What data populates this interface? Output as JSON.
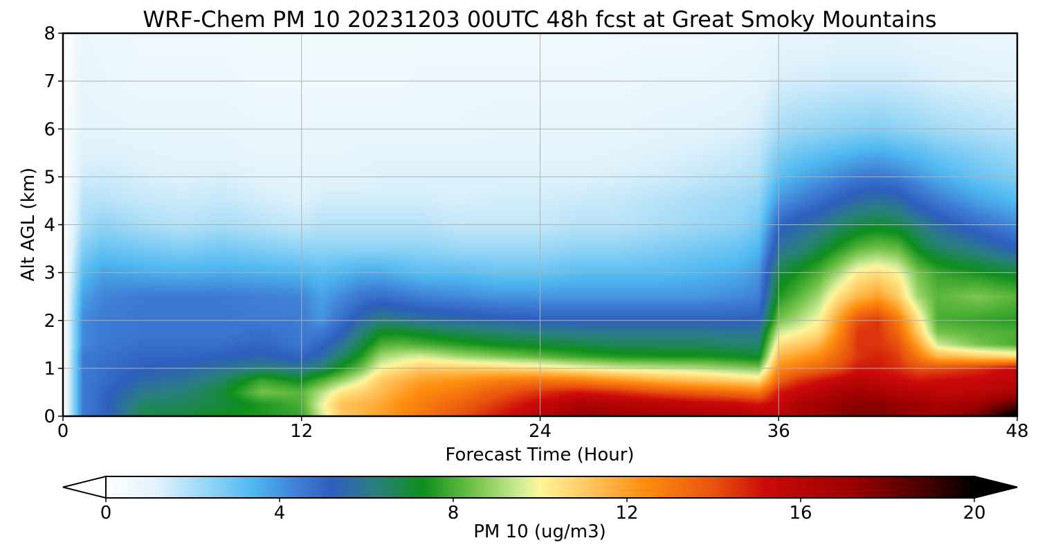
{
  "chart_data": {
    "type": "heatmap",
    "title": "WRF-Chem PM 10  20231203 00UTC 48h fcst at Great Smoky Mountains",
    "xlabel": "Forecast Time (Hour)",
    "ylabel": "Alt AGL (km)",
    "xlim": [
      0,
      48
    ],
    "ylim": [
      0,
      8
    ],
    "xticks": [
      0,
      12,
      24,
      36,
      48
    ],
    "yticks": [
      0,
      1,
      2,
      3,
      4,
      5,
      6,
      7,
      8
    ],
    "grid": true,
    "colorbar": {
      "label": "PM 10  (ug/m3)",
      "range": [
        0,
        20
      ],
      "ticks": [
        0,
        4,
        8,
        12,
        16,
        20
      ],
      "extend": "both",
      "under_color": "#ffffff",
      "over_color": "#000000",
      "stops": [
        [
          0,
          "#ffffff"
        ],
        [
          1.2,
          "#dff2fb"
        ],
        [
          2.4,
          "#8fd3f5"
        ],
        [
          3.4,
          "#4fb8f0"
        ],
        [
          4.4,
          "#3f7fd6"
        ],
        [
          5.2,
          "#2e5fbf"
        ],
        [
          6.2,
          "#2a7f80"
        ],
        [
          7.3,
          "#0e8f1c"
        ],
        [
          8.4,
          "#6cbf45"
        ],
        [
          9.6,
          "#d5ee9a"
        ],
        [
          10,
          "#fff599"
        ],
        [
          11.2,
          "#ffc35a"
        ],
        [
          12.4,
          "#ff8e0f"
        ],
        [
          14,
          "#e8520d"
        ],
        [
          15.2,
          "#cc0a0a"
        ],
        [
          17.2,
          "#9a0000"
        ],
        [
          18.8,
          "#4a0000"
        ],
        [
          20,
          "#000000"
        ]
      ]
    },
    "x": [
      0,
      1,
      2,
      4,
      6,
      8,
      10,
      12,
      13,
      14,
      15,
      16,
      17,
      18,
      20,
      22,
      24,
      26,
      28,
      30,
      32,
      34,
      35,
      36,
      37,
      38,
      39,
      40,
      41,
      42,
      43,
      44,
      46,
      48
    ],
    "y": [
      0,
      0.25,
      0.5,
      0.75,
      1,
      1.25,
      1.5,
      1.75,
      2,
      2.5,
      3,
      3.5,
      4,
      4.5,
      5,
      5.5,
      6,
      7,
      8
    ],
    "series": [
      {
        "values": [
          [
            0,
            4.5,
            5.0,
            6.8,
            7.0,
            7.3,
            7.5,
            7.8,
            9.5,
            11.0,
            11.5,
            12.0,
            12.5,
            13.0,
            14.0,
            15.0,
            16.0,
            17.2,
            17.0,
            16.8,
            16.5,
            16.2,
            16.0,
            16.0,
            16.5,
            17.0,
            17.5,
            17.8,
            17.8,
            17.5,
            17.2,
            17.0,
            18.0,
            20.5
          ],
          [
            0,
            4.5,
            5.0,
            6.5,
            6.6,
            6.9,
            7.5,
            8.0,
            9.8,
            11.2,
            11.5,
            11.8,
            12.4,
            12.8,
            13.6,
            14.5,
            15.5,
            16.5,
            16.2,
            16.0,
            15.6,
            15.4,
            15.0,
            15.5,
            16.5,
            16.8,
            17.2,
            17.5,
            17.5,
            17.2,
            17.0,
            16.6,
            17.0,
            18.5
          ],
          [
            0,
            4.5,
            5.0,
            6.0,
            6.3,
            7.0,
            8.5,
            8.2,
            9.2,
            10.4,
            10.8,
            11.4,
            12.0,
            12.5,
            13.0,
            13.8,
            14.5,
            15.0,
            14.6,
            14.0,
            13.6,
            13.2,
            13.0,
            15.0,
            15.5,
            16.0,
            16.5,
            16.8,
            16.6,
            16.2,
            16.0,
            15.8,
            15.8,
            16.5
          ],
          [
            0,
            4.5,
            4.8,
            5.5,
            5.8,
            6.5,
            7.8,
            7.2,
            8.0,
            8.8,
            9.8,
            11.0,
            11.5,
            12.0,
            12.3,
            12.8,
            13.0,
            12.8,
            12.2,
            11.6,
            11.2,
            10.8,
            10.5,
            13.5,
            14.5,
            15.0,
            15.5,
            16.0,
            15.6,
            15.4,
            15.0,
            15.2,
            15.4,
            15.8
          ],
          [
            0,
            4.5,
            4.8,
            5.2,
            5.4,
            5.8,
            6.2,
            6.0,
            6.4,
            7.4,
            8.4,
            10.0,
            10.5,
            11.0,
            11.0,
            10.8,
            10.5,
            10.0,
            9.6,
            9.4,
            9.2,
            8.8,
            8.6,
            12.5,
            13.0,
            13.5,
            14.0,
            15.0,
            15.0,
            14.6,
            14.0,
            14.0,
            14.5,
            15.5
          ],
          [
            0,
            4.5,
            4.7,
            5.0,
            5.0,
            5.2,
            5.4,
            5.0,
            5.6,
            6.5,
            7.5,
            9.0,
            9.4,
            9.6,
            9.0,
            8.6,
            8.2,
            7.8,
            7.5,
            7.4,
            7.4,
            7.2,
            7.0,
            11.5,
            12.0,
            12.5,
            13.5,
            14.5,
            14.8,
            14.4,
            13.0,
            11.5,
            11.0,
            10.5
          ],
          [
            0,
            4.2,
            4.5,
            4.8,
            4.8,
            4.8,
            5.0,
            4.6,
            5.0,
            5.8,
            6.8,
            8.0,
            8.2,
            8.0,
            7.6,
            7.2,
            7.0,
            6.8,
            6.6,
            6.6,
            6.6,
            6.4,
            6.4,
            10.5,
            11.0,
            11.5,
            13.0,
            14.5,
            14.5,
            14.0,
            12.0,
            9.5,
            8.5,
            8.0
          ],
          [
            0,
            4.2,
            4.5,
            4.6,
            4.6,
            4.6,
            4.8,
            4.5,
            4.5,
            5.2,
            6.2,
            7.2,
            7.2,
            7.0,
            6.6,
            6.4,
            6.2,
            6.0,
            6.0,
            6.0,
            6.0,
            5.9,
            5.9,
            9.5,
            10.0,
            10.5,
            12.5,
            14.5,
            14.5,
            13.5,
            11.0,
            8.5,
            8.2,
            8.0
          ],
          [
            0,
            4.2,
            4.5,
            4.6,
            4.6,
            4.6,
            4.5,
            4.5,
            4.0,
            4.8,
            5.6,
            6.2,
            6.0,
            5.8,
            5.6,
            5.4,
            5.2,
            5.2,
            5.2,
            5.2,
            5.2,
            5.2,
            5.2,
            8.5,
            9.2,
            10.0,
            12.0,
            14.0,
            14.5,
            13.0,
            10.5,
            8.0,
            7.8,
            7.6
          ],
          [
            0,
            3.8,
            4.3,
            4.5,
            4.5,
            4.5,
            4.4,
            4.3,
            3.8,
            4.2,
            4.6,
            4.8,
            4.6,
            4.4,
            4.2,
            4.0,
            4.0,
            4.0,
            4.0,
            4.0,
            4.0,
            4.2,
            4.4,
            7.5,
            8.2,
            9.0,
            10.5,
            11.5,
            12.0,
            11.0,
            9.0,
            8.2,
            8.6,
            8.2
          ],
          [
            0,
            3.2,
            3.8,
            3.6,
            3.5,
            3.6,
            3.5,
            3.4,
            3.2,
            3.4,
            3.6,
            3.6,
            3.4,
            3.2,
            3.2,
            3.0,
            3.0,
            3.2,
            3.2,
            3.2,
            3.4,
            3.6,
            4.0,
            6.8,
            7.4,
            8.0,
            9.0,
            10.2,
            10.5,
            10.0,
            8.5,
            7.8,
            7.4,
            7.0
          ],
          [
            0,
            2.6,
            3.0,
            2.8,
            2.6,
            2.8,
            2.6,
            2.4,
            2.4,
            2.4,
            2.4,
            2.4,
            2.4,
            2.4,
            2.2,
            2.2,
            2.2,
            2.4,
            2.4,
            2.6,
            2.8,
            3.0,
            3.4,
            5.8,
            6.2,
            6.8,
            7.5,
            8.2,
            8.5,
            8.3,
            7.2,
            6.5,
            6.0,
            5.2
          ],
          [
            0,
            2.0,
            2.4,
            2.0,
            1.8,
            2.0,
            1.8,
            1.6,
            1.8,
            1.8,
            1.8,
            1.8,
            1.8,
            1.8,
            1.6,
            1.6,
            1.6,
            1.8,
            1.8,
            2.0,
            2.2,
            2.4,
            2.8,
            5.0,
            5.5,
            5.8,
            6.4,
            6.8,
            7.0,
            6.8,
            6.2,
            5.6,
            4.8,
            4.2
          ],
          [
            0,
            1.8,
            1.8,
            1.6,
            1.5,
            1.6,
            1.4,
            1.2,
            1.4,
            1.4,
            1.4,
            1.4,
            1.4,
            1.4,
            1.3,
            1.4,
            1.4,
            1.5,
            1.6,
            1.8,
            2.0,
            2.2,
            2.4,
            4.0,
            4.4,
            4.8,
            5.2,
            5.6,
            5.8,
            5.6,
            5.0,
            4.5,
            3.8,
            3.3
          ],
          [
            0,
            1.4,
            1.5,
            1.3,
            1.2,
            1.3,
            1.1,
            1.0,
            1.1,
            1.1,
            1.1,
            1.2,
            1.2,
            1.2,
            1.2,
            1.2,
            1.2,
            1.2,
            1.3,
            1.4,
            1.6,
            1.8,
            2.0,
            3.2,
            3.6,
            3.9,
            4.2,
            4.5,
            4.6,
            4.4,
            4.0,
            3.6,
            3.0,
            2.6
          ],
          [
            0,
            1.2,
            1.2,
            1.1,
            1.0,
            1.0,
            0.9,
            0.9,
            0.9,
            0.9,
            1.0,
            1.0,
            1.0,
            1.0,
            1.0,
            1.0,
            1.0,
            1.0,
            1.1,
            1.2,
            1.3,
            1.5,
            1.7,
            2.6,
            2.9,
            3.1,
            3.3,
            3.5,
            3.6,
            3.4,
            3.2,
            2.9,
            2.5,
            2.2
          ],
          [
            0,
            1.0,
            1.0,
            0.9,
            0.9,
            0.9,
            0.8,
            0.8,
            0.8,
            0.8,
            0.8,
            0.8,
            0.8,
            0.8,
            0.8,
            0.9,
            0.9,
            0.9,
            0.9,
            1.0,
            1.1,
            1.2,
            1.4,
            2.0,
            2.2,
            2.3,
            2.4,
            2.5,
            2.6,
            2.4,
            2.3,
            2.1,
            1.9,
            1.7
          ],
          [
            0,
            0.9,
            0.8,
            0.7,
            0.7,
            0.7,
            0.6,
            0.6,
            0.6,
            0.6,
            0.6,
            0.6,
            0.6,
            0.7,
            0.7,
            0.7,
            0.7,
            0.7,
            0.7,
            0.8,
            0.8,
            0.9,
            1.0,
            1.3,
            1.4,
            1.4,
            1.5,
            1.5,
            1.5,
            1.5,
            1.4,
            1.3,
            1.2,
            1.1
          ],
          [
            0,
            0.8,
            0.7,
            0.6,
            0.6,
            0.6,
            0.5,
            0.5,
            0.5,
            0.5,
            0.5,
            0.5,
            0.5,
            0.5,
            0.5,
            0.5,
            0.5,
            0.5,
            0.6,
            0.6,
            0.6,
            0.7,
            0.7,
            0.9,
            0.9,
            0.9,
            1.0,
            1.0,
            1.0,
            1.0,
            0.9,
            0.9,
            0.8,
            0.8
          ]
        ]
      }
    ]
  }
}
